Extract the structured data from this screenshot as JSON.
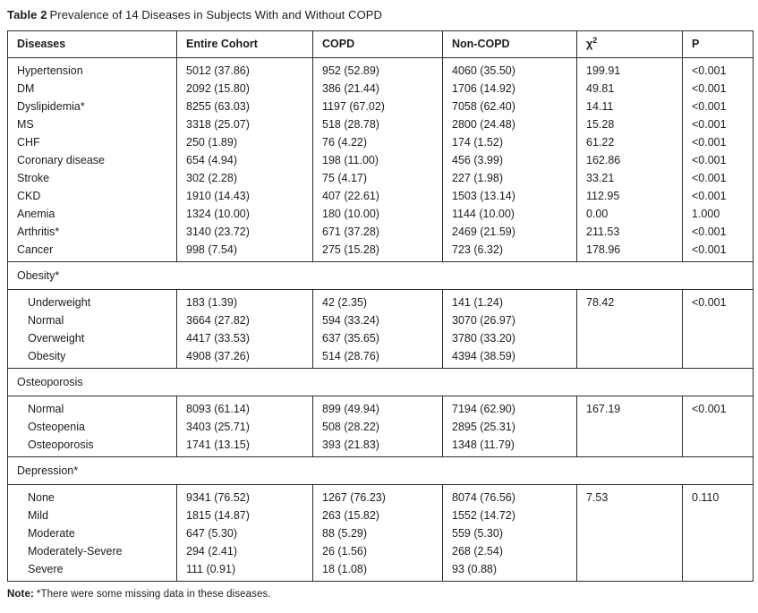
{
  "title": {
    "label": "Table 2",
    "text": "Prevalence of 14 Diseases in Subjects With and Without COPD"
  },
  "note": {
    "label": "Note:",
    "text": "*There were some missing data in these diseases."
  },
  "table": {
    "columns": [
      {
        "key": "diseases",
        "label": "Diseases"
      },
      {
        "key": "entire-cohort",
        "label": "Entire Cohort"
      },
      {
        "key": "copd",
        "label": "COPD"
      },
      {
        "key": "non-copd",
        "label": "Non-COPD"
      },
      {
        "key": "chi-square",
        "label": "χ",
        "sup": "2"
      },
      {
        "key": "p",
        "label": "P"
      }
    ],
    "sections": [
      {
        "header": null,
        "rows": [
          [
            "Hypertension",
            "5012 (37.86)",
            "952 (52.89)",
            "4060 (35.50)",
            "199.91",
            "<0.001"
          ],
          [
            "DM",
            "2092 (15.80)",
            "386 (21.44)",
            "1706 (14.92)",
            "49.81",
            "<0.001"
          ],
          [
            "Dyslipidemia*",
            "8255 (63.03)",
            "1197 (67.02)",
            "7058 (62.40)",
            "14.11",
            "<0.001"
          ],
          [
            "MS",
            "3318 (25.07)",
            "518 (28.78)",
            "2800 (24.48)",
            "15.28",
            "<0.001"
          ],
          [
            "CHF",
            "250 (1.89)",
            "76 (4.22)",
            "174 (1.52)",
            "61.22",
            "<0.001"
          ],
          [
            "Coronary disease",
            "654 (4.94)",
            "198 (11.00)",
            "456 (3.99)",
            "162.86",
            "<0.001"
          ],
          [
            "Stroke",
            "302 (2.28)",
            "75 (4.17)",
            "227 (1.98)",
            "33.21",
            "<0.001"
          ],
          [
            "CKD",
            "1910 (14.43)",
            "407 (22.61)",
            "1503 (13.14)",
            "112.95",
            "<0.001"
          ],
          [
            "Anemia",
            "1324 (10.00)",
            "180 (10.00)",
            "1144 (10.00)",
            "0.00",
            "1.000"
          ],
          [
            "Arthritis*",
            "3140 (23.72)",
            "671 (37.28)",
            "2469 (21.59)",
            "211.53",
            "<0.001"
          ],
          [
            "Cancer",
            "998 (7.54)",
            "275 (15.28)",
            "723 (6.32)",
            "178.96",
            "<0.001"
          ]
        ]
      },
      {
        "header": "Obesity*",
        "rows": [
          [
            "Underweight",
            "183 (1.39)",
            "42 (2.35)",
            "141 (1.24)",
            "78.42",
            "<0.001"
          ],
          [
            "Normal",
            "3664 (27.82)",
            "594 (33.24)",
            "3070 (26.97)",
            "",
            ""
          ],
          [
            "Overweight",
            "4417 (33.53)",
            "637 (35.65)",
            "3780 (33.20)",
            "",
            ""
          ],
          [
            "Obesity",
            "4908 (37.26)",
            "514 (28.76)",
            "4394 (38.59)",
            "",
            ""
          ]
        ]
      },
      {
        "header": "Osteoporosis",
        "rows": [
          [
            "Normal",
            "8093 (61.14)",
            "899 (49.94)",
            "7194 (62.90)",
            "167.19",
            "<0.001"
          ],
          [
            "Osteopenia",
            "3403 (25.71)",
            "508 (28.22)",
            "2895 (25.31)",
            "",
            ""
          ],
          [
            "Osteoporosis",
            "1741 (13.15)",
            "393 (21.83)",
            "1348 (11.79)",
            "",
            ""
          ]
        ]
      },
      {
        "header": "Depression*",
        "rows": [
          [
            "None",
            "9341 (76.52)",
            "1267 (76.23)",
            "8074 (76.56)",
            "7.53",
            "0.110"
          ],
          [
            "Mild",
            "1815 (14.87)",
            "263 (15.82)",
            "1552 (14.72)",
            "",
            ""
          ],
          [
            "Moderate",
            "647 (5.30)",
            "88 (5.29)",
            "559 (5.30)",
            "",
            ""
          ],
          [
            "Moderately-Severe",
            "294 (2.41)",
            "26 (1.56)",
            "268 (2.54)",
            "",
            ""
          ],
          [
            "Severe",
            "111 (0.91)",
            "18 (1.08)",
            "93 (0.88)",
            "",
            ""
          ]
        ]
      }
    ]
  }
}
